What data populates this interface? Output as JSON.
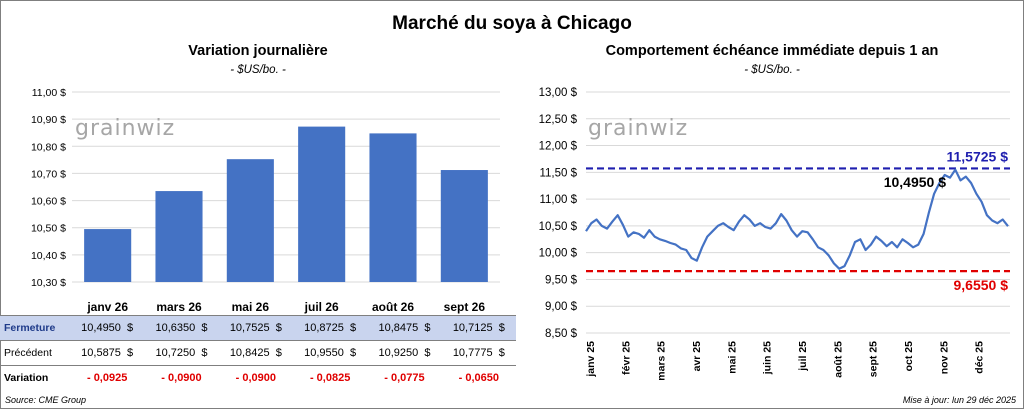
{
  "page": {
    "title": "Marché du soya à Chicago",
    "source": "Source: CME Group",
    "updated": "Mise à jour: lun 29 déc 2025",
    "watermark": "grainwiz"
  },
  "left_panel": {
    "title": "Variation journalière",
    "unit": "- $US/bo. -",
    "table": {
      "rows": [
        {
          "label": "Fermeture",
          "values": [
            "10,4950",
            "10,6350",
            "10,7525",
            "10,8725",
            "10,8475",
            "10,7125"
          ]
        },
        {
          "label": "Précédent",
          "values": [
            "10,5875",
            "10,7250",
            "10,8425",
            "10,9550",
            "10,9250",
            "10,7775"
          ]
        },
        {
          "label": "Variation",
          "values": [
            "- 0,0925",
            "- 0,0900",
            "- 0,0900",
            "- 0,0825",
            "- 0,0775",
            "- 0,0650"
          ]
        }
      ],
      "currency": "$"
    }
  },
  "right_panel": {
    "title": "Comportement échéance immédiate depuis 1 an",
    "unit": "- $US/bo. -"
  },
  "colors": {
    "bar": "#4472c4",
    "line": "#4472c4",
    "high_line": "#1f1faf",
    "low_line": "#e00000",
    "grid": "#d9d9d9"
  },
  "chart_data": [
    {
      "type": "bar",
      "categories": [
        "janv 26",
        "mars 26",
        "mai 26",
        "juil 26",
        "août 26",
        "sept 26"
      ],
      "values": [
        10.495,
        10.635,
        10.7525,
        10.8725,
        10.8475,
        10.7125
      ],
      "ylim": [
        10.3,
        11.0
      ],
      "yticks": [
        "10,30 $",
        "10,40 $",
        "10,50 $",
        "10,60 $",
        "10,70 $",
        "10,80 $",
        "10,90 $",
        "11,00 $"
      ],
      "grid": true
    },
    {
      "type": "line",
      "x_labels": [
        "janv 25",
        "févr 25",
        "mars 25",
        "avr 25",
        "mai 25",
        "juin 25",
        "juil 25",
        "août 25",
        "sept 25",
        "oct 25",
        "nov 25",
        "déc 25"
      ],
      "values": [
        10.4,
        10.55,
        10.62,
        10.5,
        10.45,
        10.58,
        10.7,
        10.52,
        10.3,
        10.38,
        10.35,
        10.28,
        10.42,
        10.3,
        10.25,
        10.22,
        10.18,
        10.15,
        10.08,
        10.05,
        9.9,
        9.85,
        10.1,
        10.3,
        10.4,
        10.5,
        10.55,
        10.48,
        10.42,
        10.58,
        10.7,
        10.62,
        10.5,
        10.55,
        10.48,
        10.45,
        10.55,
        10.72,
        10.6,
        10.42,
        10.3,
        10.4,
        10.38,
        10.25,
        10.1,
        10.05,
        9.95,
        9.8,
        9.7,
        9.75,
        9.95,
        10.2,
        10.25,
        10.05,
        10.15,
        10.3,
        10.22,
        10.12,
        10.2,
        10.1,
        10.25,
        10.18,
        10.1,
        10.15,
        10.35,
        10.75,
        11.1,
        11.3,
        11.45,
        11.4,
        11.55,
        11.35,
        11.42,
        11.3,
        11.1,
        10.95,
        10.7,
        10.6,
        10.55,
        10.62,
        10.495
      ],
      "ylim": [
        8.5,
        13.0
      ],
      "yticks": [
        "8,50 $",
        "9,00 $",
        "9,50 $",
        "10,00 $",
        "10,50 $",
        "11,00 $",
        "11,50 $",
        "12,00 $",
        "12,50 $",
        "13,00 $"
      ],
      "high": 11.5725,
      "low": 9.655,
      "last": 10.495,
      "high_label": "11,5725 $",
      "low_label": "9,6550 $",
      "last_label": "10,4950 $",
      "grid": true
    }
  ]
}
